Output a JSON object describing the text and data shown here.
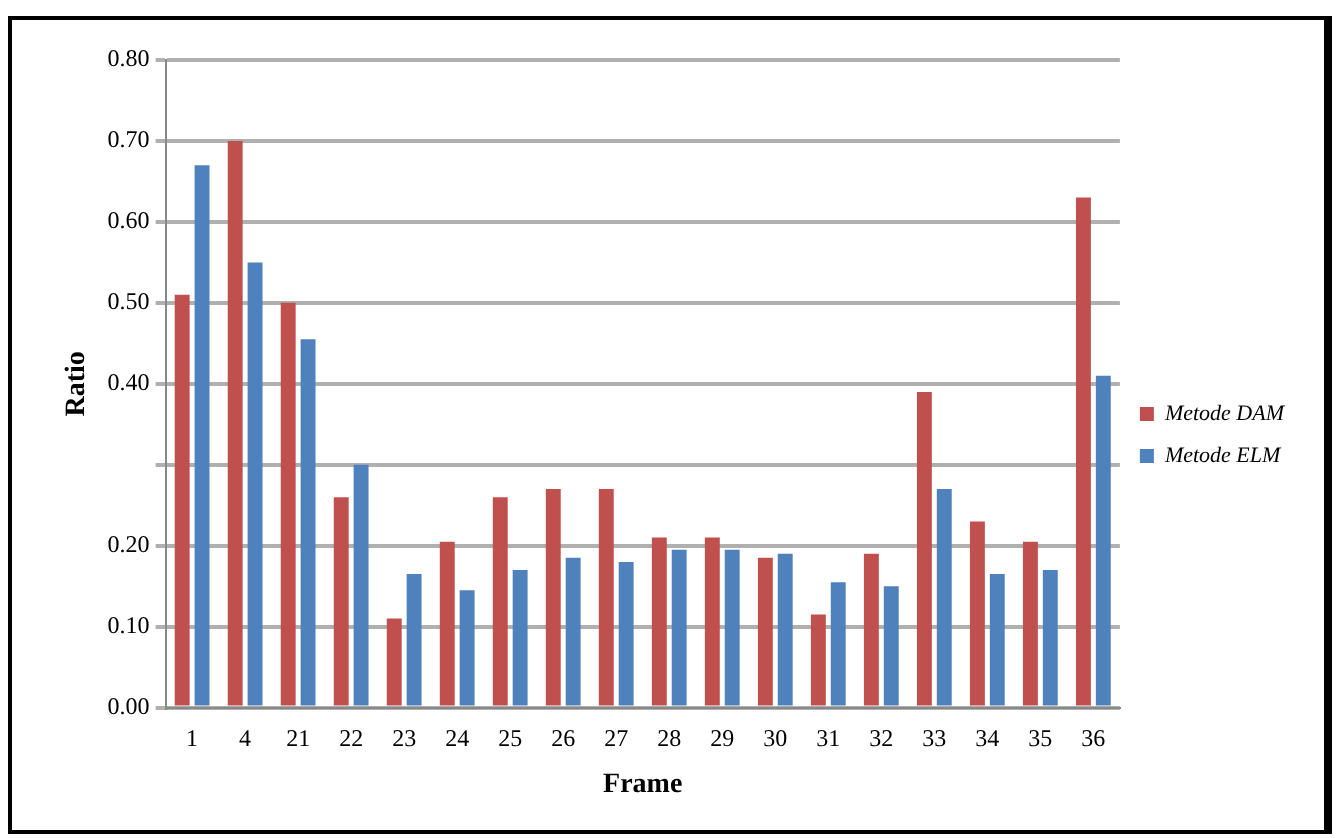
{
  "chart_data": {
    "type": "bar",
    "xlabel": "Frame",
    "ylabel": "Ratio",
    "categories": [
      "1",
      "4",
      "21",
      "22",
      "23",
      "24",
      "25",
      "26",
      "27",
      "28",
      "29",
      "30",
      "31",
      "32",
      "33",
      "34",
      "35",
      "36"
    ],
    "series": [
      {
        "name": "Metode DAM",
        "color": "#c0504d",
        "values": [
          0.51,
          0.7,
          0.5,
          0.26,
          0.11,
          0.205,
          0.26,
          0.27,
          0.27,
          0.21,
          0.21,
          0.185,
          0.115,
          0.19,
          0.39,
          0.23,
          0.205,
          0.63
        ]
      },
      {
        "name": "Metode ELM",
        "color": "#4f81bd",
        "values": [
          0.67,
          0.55,
          0.455,
          0.3,
          0.165,
          0.145,
          0.17,
          0.185,
          0.18,
          0.195,
          0.195,
          0.19,
          0.155,
          0.15,
          0.27,
          0.165,
          0.17,
          0.41
        ]
      }
    ],
    "ylim": [
      0,
      0.8
    ],
    "yticks": [
      {
        "value": 0,
        "label": "0.00"
      },
      {
        "value": 0.1,
        "label": "0.10"
      },
      {
        "value": 0.2,
        "label": "0.20"
      },
      {
        "value": 0.3,
        "label": null
      },
      {
        "value": 0.4,
        "label": "0.40"
      },
      {
        "value": 0.5,
        "label": "0.50"
      },
      {
        "value": 0.6,
        "label": "0.60"
      },
      {
        "value": 0.7,
        "label": "0.70"
      },
      {
        "value": 0.8,
        "label": "0.80"
      }
    ],
    "grid": "y",
    "legend": "right"
  }
}
